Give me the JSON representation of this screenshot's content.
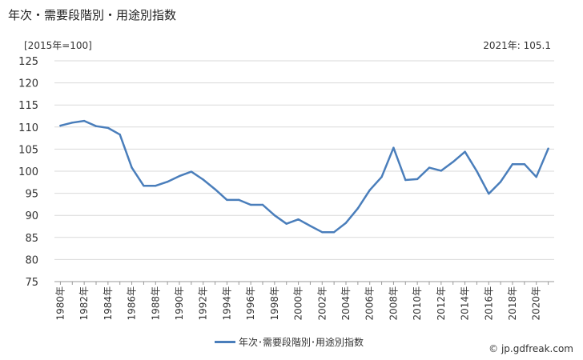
{
  "title": "年次・需要段階別・用途別指数",
  "unit_label": "[2015年=100]",
  "latest_label": "2021年: 105.1",
  "credit": "© jp.gdfreak.com",
  "series_color": "#4a7ebb",
  "chart_data": {
    "type": "line",
    "title": "年次・需要段階別・用途別指数",
    "ylim": [
      75,
      125
    ],
    "yticks": [
      75,
      80,
      85,
      90,
      95,
      100,
      105,
      110,
      115,
      120,
      125
    ],
    "grid": "horizontal",
    "legend_position": "bottom-center",
    "x": [
      "1980年",
      "1981年",
      "1982年",
      "1983年",
      "1984年",
      "1985年",
      "1986年",
      "1987年",
      "1988年",
      "1989年",
      "1990年",
      "1991年",
      "1992年",
      "1993年",
      "1994年",
      "1995年",
      "1996年",
      "1997年",
      "1998年",
      "1999年",
      "2000年",
      "2001年",
      "2002年",
      "2003年",
      "2004年",
      "2005年",
      "2006年",
      "2007年",
      "2008年",
      "2009年",
      "2010年",
      "2011年",
      "2012年",
      "2013年",
      "2014年",
      "2015年",
      "2016年",
      "2017年",
      "2018年",
      "2019年",
      "2020年",
      "2021年"
    ],
    "xtick_labels": [
      "1980年",
      "1982年",
      "1984年",
      "1986年",
      "1988年",
      "1990年",
      "1992年",
      "1994年",
      "1996年",
      "1998年",
      "2000年",
      "2002年",
      "2004年",
      "2006年",
      "2008年",
      "2010年",
      "2012年",
      "2014年",
      "2016年",
      "2018年",
      "2020年"
    ],
    "series": [
      {
        "name": "年次･需要段階別･用途別指数",
        "values": [
          110.3,
          111.0,
          111.4,
          110.2,
          109.8,
          108.3,
          100.8,
          96.7,
          96.7,
          97.6,
          98.9,
          99.9,
          98.1,
          95.9,
          93.5,
          93.5,
          92.4,
          92.4,
          90.0,
          88.1,
          89.1,
          87.6,
          86.2,
          86.2,
          88.3,
          91.6,
          95.7,
          98.7,
          105.3,
          98.0,
          98.2,
          100.8,
          100.1,
          102.1,
          104.4,
          100.0,
          94.9,
          97.6,
          101.6,
          101.6,
          98.7,
          105.1
        ]
      }
    ]
  }
}
